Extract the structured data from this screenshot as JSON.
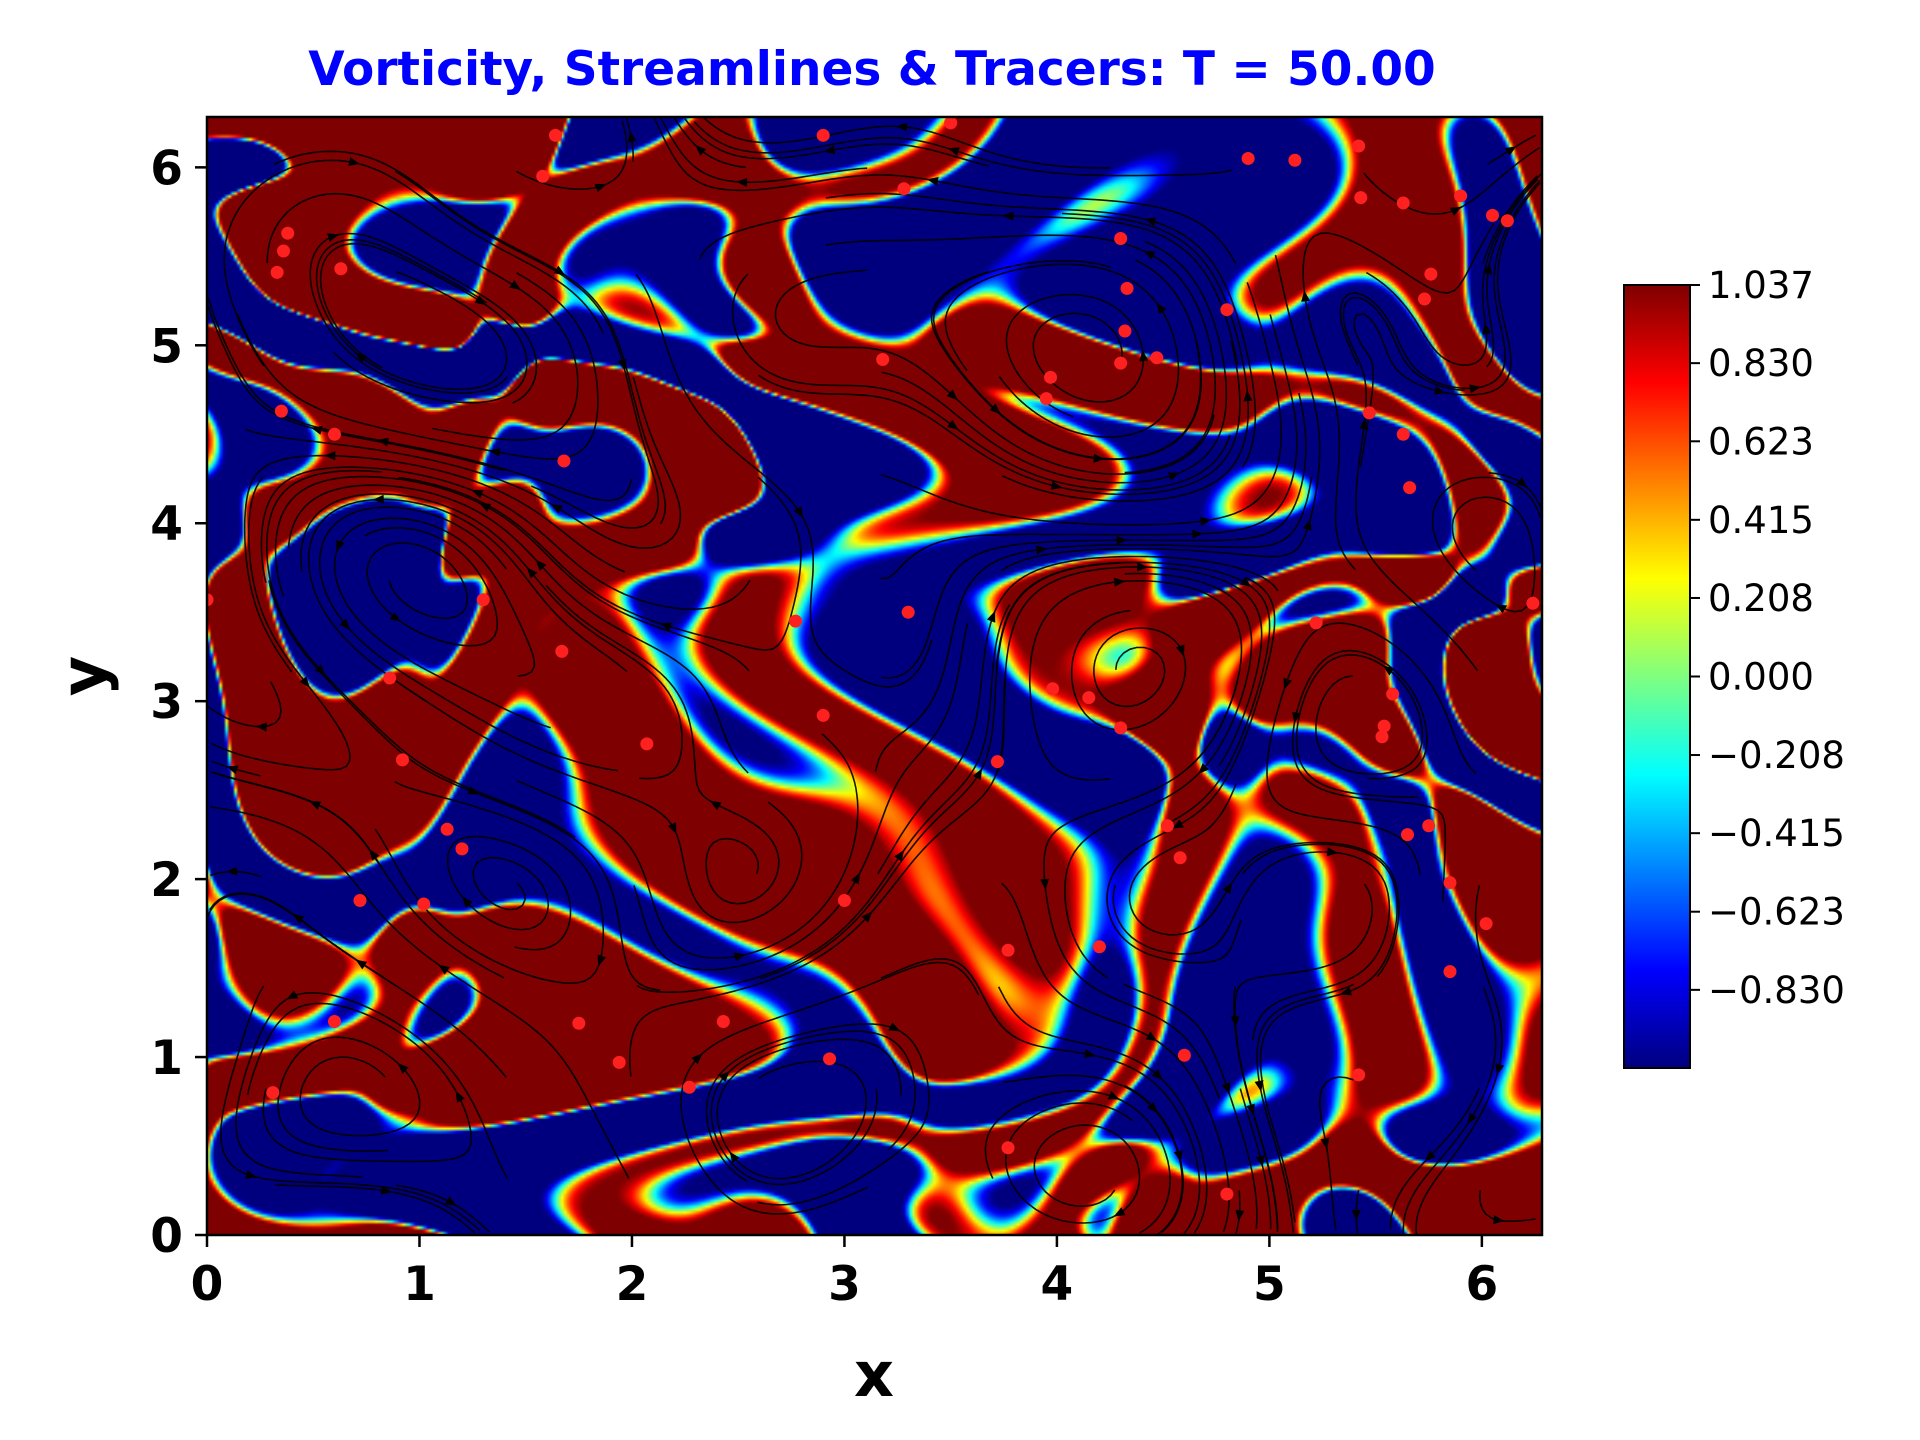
{
  "chart_data": {
    "type": "heatmap",
    "title": "Vorticity, Streamlines & Tracers: T = 50.00",
    "title_color": "#0000ff",
    "xlabel": "x",
    "ylabel": "y",
    "xlim": [
      0,
      6.283
    ],
    "ylim": [
      0,
      6.283
    ],
    "x_ticks": [
      "0",
      "1",
      "2",
      "3",
      "4",
      "5",
      "6"
    ],
    "y_ticks": [
      "0",
      "1",
      "2",
      "3",
      "4",
      "5",
      "6"
    ],
    "colormap": "jet",
    "colorbar": {
      "vmin": -1.037,
      "vmax": 1.037,
      "ticks": [
        "1.037",
        "0.830",
        "0.623",
        "0.415",
        "0.208",
        "0.000",
        "−0.208",
        "−0.415",
        "−0.623",
        "−0.830"
      ],
      "colors": [
        "#00007f",
        "#0000ff",
        "#007fff",
        "#00ffff",
        "#7fff7f",
        "#ffff00",
        "#ff7f00",
        "#ff0000",
        "#7f0000"
      ]
    },
    "series": [
      {
        "name": "vorticity",
        "kind": "field"
      },
      {
        "name": "streamlines",
        "kind": "line",
        "color": "#000000"
      },
      {
        "name": "tracers",
        "kind": "scatter",
        "color": "#ff2020",
        "points": [
          [
            0.38,
            5.63
          ],
          [
            0.36,
            5.53
          ],
          [
            0.33,
            5.41
          ],
          [
            0.63,
            5.43
          ],
          [
            1.64,
            6.18
          ],
          [
            1.58,
            5.95
          ],
          [
            2.9,
            6.18
          ],
          [
            3.5,
            6.25
          ],
          [
            3.28,
            5.88
          ],
          [
            4.9,
            6.05
          ],
          [
            5.12,
            6.04
          ],
          [
            5.42,
            6.12
          ],
          [
            5.43,
            5.83
          ],
          [
            5.63,
            5.8
          ],
          [
            5.9,
            5.84
          ],
          [
            6.05,
            5.73
          ],
          [
            6.12,
            5.7
          ],
          [
            4.3,
            5.6
          ],
          [
            4.33,
            5.32
          ],
          [
            4.32,
            5.08
          ],
          [
            4.3,
            4.9
          ],
          [
            4.47,
            4.93
          ],
          [
            4.8,
            5.2
          ],
          [
            5.76,
            5.4
          ],
          [
            5.73,
            5.26
          ],
          [
            3.18,
            4.92
          ],
          [
            3.97,
            4.82
          ],
          [
            3.95,
            4.7
          ],
          [
            0.35,
            4.63
          ],
          [
            0.6,
            4.5
          ],
          [
            1.68,
            4.35
          ],
          [
            5.47,
            4.62
          ],
          [
            5.63,
            4.5
          ],
          [
            5.66,
            4.2
          ],
          [
            0.0,
            3.57
          ],
          [
            1.3,
            3.57
          ],
          [
            0.86,
            3.13
          ],
          [
            1.67,
            3.28
          ],
          [
            2.77,
            3.45
          ],
          [
            3.3,
            3.5
          ],
          [
            5.22,
            3.44
          ],
          [
            6.24,
            3.55
          ],
          [
            0.92,
            2.67
          ],
          [
            1.13,
            2.28
          ],
          [
            1.2,
            2.17
          ],
          [
            2.07,
            2.76
          ],
          [
            2.9,
            2.92
          ],
          [
            3.72,
            2.66
          ],
          [
            3.98,
            3.07
          ],
          [
            4.15,
            3.02
          ],
          [
            4.3,
            2.85
          ],
          [
            4.52,
            2.3
          ],
          [
            4.58,
            2.12
          ],
          [
            5.54,
            2.86
          ],
          [
            5.53,
            2.8
          ],
          [
            5.58,
            3.04
          ],
          [
            5.65,
            2.25
          ],
          [
            5.75,
            2.3
          ],
          [
            5.85,
            1.98
          ],
          [
            0.72,
            1.88
          ],
          [
            1.02,
            1.86
          ],
          [
            3.0,
            1.88
          ],
          [
            3.77,
            1.6
          ],
          [
            4.2,
            1.62
          ],
          [
            6.02,
            1.75
          ],
          [
            5.85,
            1.48
          ],
          [
            0.6,
            1.2
          ],
          [
            1.75,
            1.19
          ],
          [
            2.43,
            1.2
          ],
          [
            1.94,
            0.97
          ],
          [
            2.93,
            0.99
          ],
          [
            4.6,
            1.01
          ],
          [
            0.31,
            0.8
          ],
          [
            2.27,
            0.83
          ],
          [
            3.77,
            0.49
          ],
          [
            4.8,
            0.23
          ],
          [
            5.42,
            0.9
          ]
        ]
      }
    ]
  }
}
